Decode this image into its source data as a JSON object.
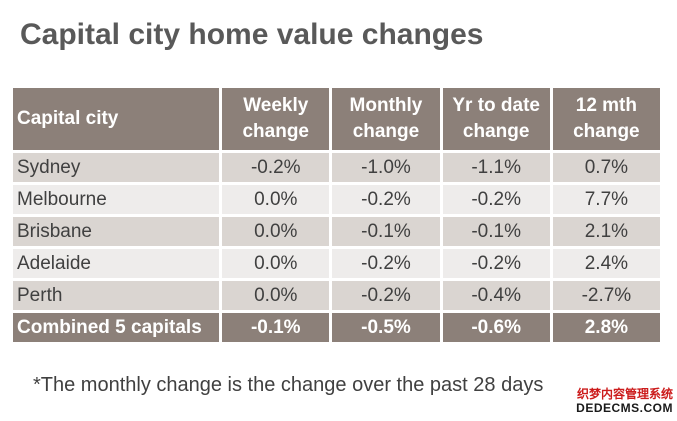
{
  "title": "Capital city home value changes",
  "headers": [
    "Capital city",
    "Weekly change",
    "Monthly change",
    "Yr to date change",
    "12 mth change"
  ],
  "rows": [
    {
      "city": "Sydney",
      "weekly": "-0.2%",
      "monthly": "-1.0%",
      "ytd": "-1.1%",
      "twelve": "0.7%"
    },
    {
      "city": "Melbourne",
      "weekly": "0.0%",
      "monthly": "-0.2%",
      "ytd": "-0.2%",
      "twelve": "7.7%"
    },
    {
      "city": "Brisbane",
      "weekly": "0.0%",
      "monthly": "-0.1%",
      "ytd": "-0.1%",
      "twelve": "2.1%"
    },
    {
      "city": "Adelaide",
      "weekly": "0.0%",
      "monthly": "-0.2%",
      "ytd": "-0.2%",
      "twelve": "2.4%"
    },
    {
      "city": "Perth",
      "weekly": "0.0%",
      "monthly": "-0.2%",
      "ytd": "-0.4%",
      "twelve": "-2.7%"
    }
  ],
  "total": {
    "city": "Combined 5 capitals",
    "weekly": "-0.1%",
    "monthly": "-0.5%",
    "ytd": "-0.6%",
    "twelve": "2.8%"
  },
  "footnote": "*The monthly change is the change over the past 28 days",
  "watermark": {
    "line1": "织梦内容管理系统",
    "line2": "DEDECMS.COM"
  },
  "colors": {
    "header_bg": "#8c8079",
    "row_dark": "#dad5d1",
    "row_light": "#eeeceb",
    "title": "#595959"
  }
}
